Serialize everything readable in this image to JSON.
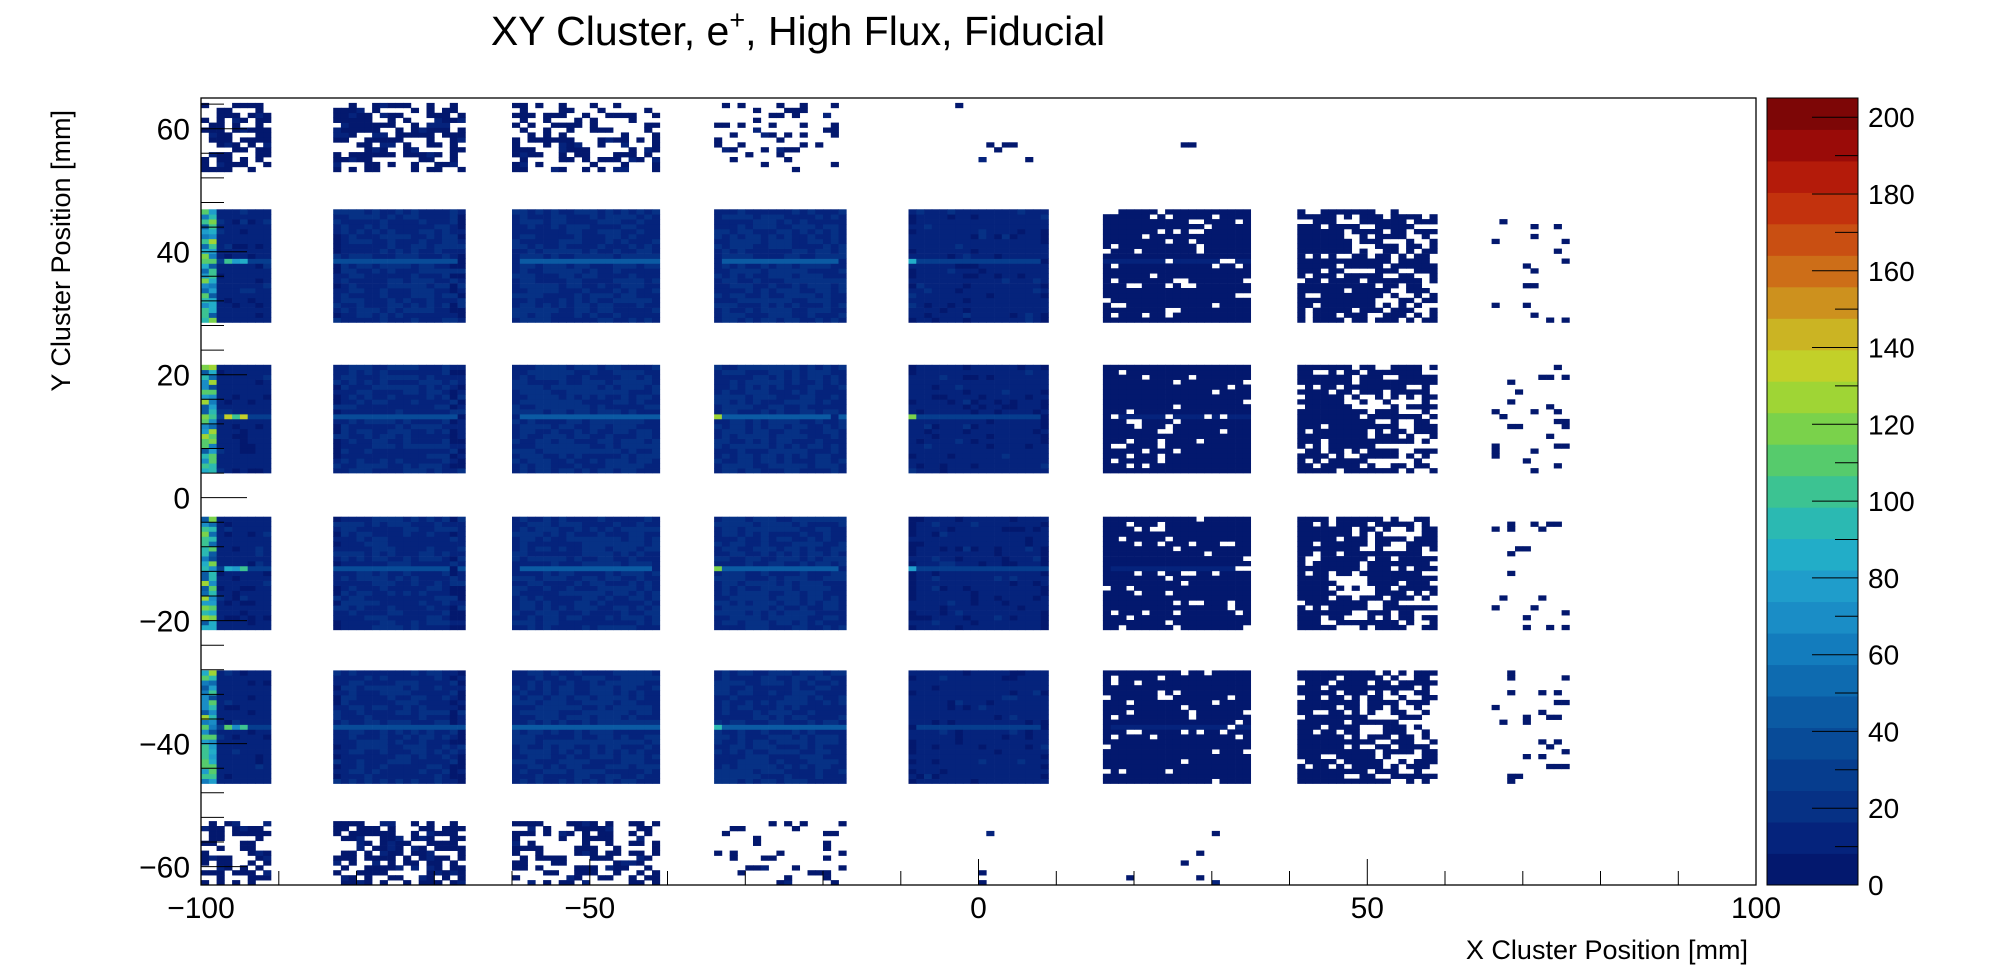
{
  "chart_data": {
    "type": "heatmap",
    "title": "XY Cluster, e",
    "title_superscript": "+",
    "title_suffix": ", High Flux, Fiducial",
    "xlabel": "X Cluster Position [mm]",
    "ylabel": "Y Cluster Position [mm]",
    "xlim": [
      -100,
      100
    ],
    "ylim": [
      -63,
      65
    ],
    "x_ticks": [
      -100,
      -50,
      0,
      50,
      100
    ],
    "x_tick_labels": [
      "−100",
      "−50",
      "0",
      "50",
      "100"
    ],
    "y_ticks": [
      60,
      40,
      20,
      0,
      -20,
      -40,
      -60
    ],
    "y_tick_labels": [
      "60",
      "40",
      "20",
      "0",
      "−20",
      "−40",
      "−60"
    ],
    "z_lim": [
      0,
      205
    ],
    "z_ticks": [
      0,
      20,
      40,
      60,
      80,
      100,
      120,
      140,
      160,
      180,
      200
    ],
    "z_tick_labels": [
      "0",
      "20",
      "40",
      "60",
      "80",
      "100",
      "120",
      "140",
      "160",
      "180",
      "200"
    ],
    "palette": [
      "#03186e",
      "#05237c",
      "#063185",
      "#063d8e",
      "#084b98",
      "#0b5aa3",
      "#0e6bb0",
      "#137cbd",
      "#1a8dc6",
      "#1f9dcb",
      "#22adc8",
      "#2bb9b2",
      "#3cc392",
      "#56cb6c",
      "#7ad24b",
      "#9fd535",
      "#c2d029",
      "#cbb423",
      "#cd911e",
      "#cd6e18",
      "#c94f12",
      "#c3320d",
      "#b41b0a",
      "#9a0b08",
      "#7d0606"
    ],
    "grid": false,
    "legend": "none",
    "modules": {
      "column_x_ranges": [
        [
          -100,
          -91.5
        ],
        [
          -83,
          -66.5
        ],
        [
          -60,
          -41.5
        ],
        [
          -34,
          -17.5
        ],
        [
          -9,
          9
        ],
        [
          16,
          34.5
        ],
        [
          41,
          59
        ]
      ],
      "row_y_ranges": [
        [
          28.5,
          46.5
        ],
        [
          4,
          21.5
        ],
        [
          -21.5,
          -3.5
        ],
        [
          -46.5,
          -28.5
        ]
      ],
      "column_fill_fraction": [
        1.0,
        1.0,
        1.0,
        1.0,
        1.0,
        0.9,
        0.5
      ],
      "column_level": [
        12,
        15,
        17,
        17,
        12,
        5,
        3
      ],
      "hot_lines_y": [
        38.5,
        13.5,
        -11.8,
        -37.3
      ],
      "hot_line_peak": [
        110,
        150,
        125,
        110
      ],
      "hot_line_peak_x": [
        -96,
        -35,
        -10
      ],
      "top_band_y": [
        53,
        64
      ],
      "bottom_band_y": [
        -63,
        -53
      ],
      "sparse_column_x": [
        66,
        76
      ],
      "sparse_column_fill_fraction": 0.1,
      "band_fill_fraction": [
        0.55,
        0.6,
        0.45,
        0.18,
        0.02,
        0.01,
        0.0
      ]
    }
  }
}
